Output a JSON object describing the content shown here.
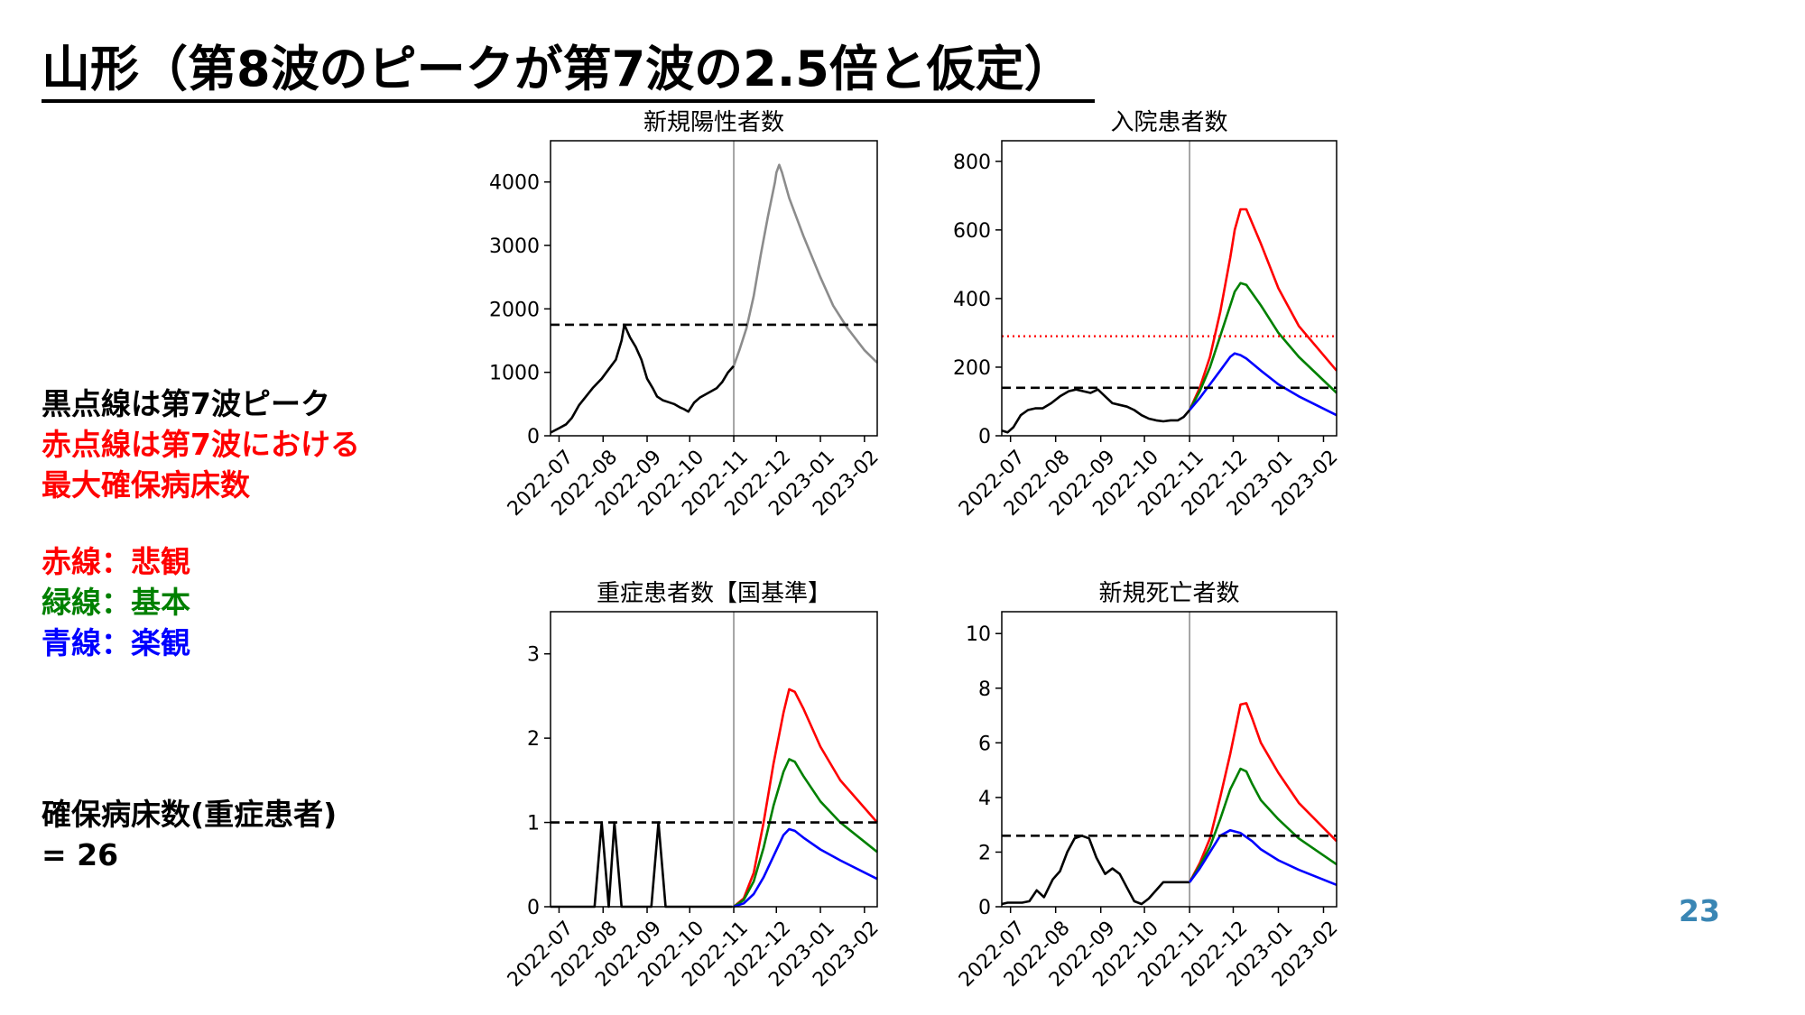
{
  "slide": {
    "title": "山形（第8波のピークが第7波の2.5倍と仮定）",
    "page_number": "23"
  },
  "notes": {
    "line1": "黒点線は第7波ピーク",
    "line2": "赤点線は第7波における",
    "line3": "最大確保病床数",
    "red_label": "赤線：悲観",
    "green_label": "緑線：基本",
    "blue_label": "青線：楽観",
    "bed_label": "確保病床数(重症患者)",
    "bed_value": "= 26"
  },
  "colors": {
    "pessimistic": "#ff0000",
    "base": "#008000",
    "optimistic": "#0000ff",
    "actual": "#000000",
    "projection": "#8c8c8c",
    "reference": "#000000",
    "page_number": "#3a86b4"
  },
  "chart_data": [
    {
      "id": "cases",
      "type": "line",
      "title": "新規陽性者数",
      "xlabel": "",
      "ylabel": "",
      "x_ticks": [
        "2022-07",
        "2022-08",
        "2022-09",
        "2022-10",
        "2022-11",
        "2022-12",
        "2023-01",
        "2023-02"
      ],
      "xlim": [
        "2022-06-25",
        "2023-02-10"
      ],
      "ylim": [
        0,
        4650
      ],
      "y_ticks": [
        0,
        1000,
        2000,
        3000,
        4000
      ],
      "divider_x": "2022-11-01",
      "hlines": [
        {
          "y": 1750,
          "style": "dashed",
          "color": "#000000"
        }
      ],
      "series": [
        {
          "style": "solid",
          "color": "#000000",
          "x": [
            "2022-06-25",
            "2022-07-01",
            "2022-07-06",
            "2022-07-10",
            "2022-07-15",
            "2022-07-20",
            "2022-07-25",
            "2022-07-31",
            "2022-08-05",
            "2022-08-10",
            "2022-08-14",
            "2022-08-16",
            "2022-08-20",
            "2022-08-24",
            "2022-08-28",
            "2022-09-01",
            "2022-09-05",
            "2022-09-08",
            "2022-09-12",
            "2022-09-16",
            "2022-09-20",
            "2022-09-24",
            "2022-09-27",
            "2022-09-30",
            "2022-10-04",
            "2022-10-08",
            "2022-10-12",
            "2022-10-16",
            "2022-10-20",
            "2022-10-24",
            "2022-10-28",
            "2022-11-01"
          ],
          "y": [
            50,
            120,
            180,
            280,
            480,
            620,
            760,
            900,
            1050,
            1200,
            1500,
            1750,
            1550,
            1400,
            1200,
            900,
            750,
            620,
            560,
            530,
            500,
            450,
            420,
            380,
            520,
            600,
            650,
            700,
            750,
            850,
            1000,
            1100
          ]
        },
        {
          "style": "solid",
          "color": "#8c8c8c",
          "x": [
            "2022-11-01",
            "2022-11-05",
            "2022-11-10",
            "2022-11-15",
            "2022-11-20",
            "2022-11-25",
            "2022-11-30",
            "2022-12-01",
            "2022-12-03",
            "2022-12-05",
            "2022-12-10",
            "2022-12-20",
            "2023-01-01",
            "2023-01-10",
            "2023-01-20",
            "2023-02-01",
            "2023-02-10"
          ],
          "y": [
            1100,
            1350,
            1700,
            2200,
            2850,
            3450,
            4000,
            4150,
            4270,
            4150,
            3750,
            3150,
            2500,
            2050,
            1700,
            1350,
            1150
          ]
        }
      ]
    },
    {
      "id": "hospitalized",
      "type": "line",
      "title": "入院患者数",
      "xlabel": "",
      "ylabel": "",
      "x_ticks": [
        "2022-07",
        "2022-08",
        "2022-09",
        "2022-10",
        "2022-11",
        "2022-12",
        "2023-01",
        "2023-02"
      ],
      "xlim": [
        "2022-06-25",
        "2023-02-10"
      ],
      "ylim": [
        0,
        860
      ],
      "y_ticks": [
        0,
        200,
        400,
        600,
        800
      ],
      "divider_x": "2022-11-01",
      "hlines": [
        {
          "y": 290,
          "style": "dotted",
          "color": "#ff0000"
        },
        {
          "y": 140,
          "style": "dashed",
          "color": "#000000"
        }
      ],
      "series": [
        {
          "style": "solid",
          "color": "#000000",
          "x": [
            "2022-06-25",
            "2022-06-29",
            "2022-07-03",
            "2022-07-08",
            "2022-07-13",
            "2022-07-18",
            "2022-07-23",
            "2022-07-29",
            "2022-08-04",
            "2022-08-10",
            "2022-08-15",
            "2022-08-20",
            "2022-08-25",
            "2022-08-30",
            "2022-09-04",
            "2022-09-09",
            "2022-09-14",
            "2022-09-19",
            "2022-09-24",
            "2022-09-29",
            "2022-10-04",
            "2022-10-09",
            "2022-10-14",
            "2022-10-19",
            "2022-10-24",
            "2022-10-28",
            "2022-11-01"
          ],
          "y": [
            15,
            10,
            25,
            60,
            75,
            80,
            80,
            95,
            115,
            130,
            135,
            130,
            125,
            135,
            115,
            95,
            90,
            85,
            75,
            60,
            50,
            45,
            42,
            45,
            45,
            55,
            75
          ]
        },
        {
          "style": "solid",
          "color": "#ff0000",
          "x": [
            "2022-11-01",
            "2022-11-08",
            "2022-11-15",
            "2022-11-22",
            "2022-11-29",
            "2022-12-02",
            "2022-12-06",
            "2022-12-10",
            "2022-12-20",
            "2023-01-01",
            "2023-01-15",
            "2023-02-10"
          ],
          "y": [
            75,
            140,
            230,
            360,
            520,
            600,
            660,
            660,
            560,
            430,
            320,
            190
          ]
        },
        {
          "style": "solid",
          "color": "#008000",
          "x": [
            "2022-11-01",
            "2022-11-08",
            "2022-11-15",
            "2022-11-22",
            "2022-11-29",
            "2022-12-02",
            "2022-12-06",
            "2022-12-10",
            "2022-12-20",
            "2023-01-01",
            "2023-01-15",
            "2023-02-10"
          ],
          "y": [
            75,
            130,
            200,
            290,
            380,
            420,
            445,
            440,
            380,
            300,
            230,
            125
          ]
        },
        {
          "style": "solid",
          "color": "#0000ff",
          "x": [
            "2022-11-01",
            "2022-11-08",
            "2022-11-15",
            "2022-11-22",
            "2022-11-29",
            "2022-12-02",
            "2022-12-06",
            "2022-12-10",
            "2022-12-20",
            "2023-01-01",
            "2023-01-15",
            "2023-02-10"
          ],
          "y": [
            75,
            110,
            150,
            190,
            230,
            240,
            235,
            225,
            190,
            150,
            115,
            60
          ]
        }
      ]
    },
    {
      "id": "severe",
      "type": "line",
      "title": "重症患者数【国基準】",
      "xlabel": "",
      "ylabel": "",
      "x_ticks": [
        "2022-07",
        "2022-08",
        "2022-09",
        "2022-10",
        "2022-11",
        "2022-12",
        "2023-01",
        "2023-02"
      ],
      "xlim": [
        "2022-06-25",
        "2023-02-10"
      ],
      "ylim": [
        0,
        3.5
      ],
      "y_ticks": [
        0,
        1,
        2,
        3
      ],
      "divider_x": "2022-11-01",
      "hlines": [
        {
          "y": 1,
          "style": "dashed",
          "color": "#000000"
        }
      ],
      "series": [
        {
          "style": "solid",
          "color": "#000000",
          "x": [
            "2022-06-25",
            "2022-07-26",
            "2022-07-31",
            "2022-08-05",
            "2022-08-09",
            "2022-08-14",
            "2022-08-18",
            "2022-09-04",
            "2022-09-09",
            "2022-09-14",
            "2022-10-31"
          ],
          "y": [
            0,
            0,
            1,
            0,
            1,
            0,
            0,
            0,
            1,
            0,
            0
          ]
        },
        {
          "style": "solid",
          "color": "#ff0000",
          "x": [
            "2022-11-01",
            "2022-11-08",
            "2022-11-15",
            "2022-11-22",
            "2022-11-29",
            "2022-12-06",
            "2022-12-10",
            "2022-12-14",
            "2022-12-20",
            "2023-01-01",
            "2023-01-15",
            "2023-02-10"
          ],
          "y": [
            0,
            0.1,
            0.4,
            1.0,
            1.7,
            2.3,
            2.58,
            2.55,
            2.35,
            1.9,
            1.5,
            1.0
          ]
        },
        {
          "style": "solid",
          "color": "#008000",
          "x": [
            "2022-11-01",
            "2022-11-08",
            "2022-11-15",
            "2022-11-22",
            "2022-11-29",
            "2022-12-06",
            "2022-12-10",
            "2022-12-14",
            "2022-12-20",
            "2023-01-01",
            "2023-01-15",
            "2023-02-10"
          ],
          "y": [
            0,
            0.08,
            0.3,
            0.7,
            1.2,
            1.6,
            1.75,
            1.72,
            1.55,
            1.25,
            1.0,
            0.65
          ]
        },
        {
          "style": "solid",
          "color": "#0000ff",
          "x": [
            "2022-11-01",
            "2022-11-08",
            "2022-11-15",
            "2022-11-22",
            "2022-11-29",
            "2022-12-06",
            "2022-12-10",
            "2022-12-14",
            "2022-12-20",
            "2023-01-01",
            "2023-01-15",
            "2023-02-10"
          ],
          "y": [
            0,
            0.04,
            0.15,
            0.35,
            0.6,
            0.85,
            0.92,
            0.9,
            0.82,
            0.68,
            0.55,
            0.33
          ]
        }
      ]
    },
    {
      "id": "deaths",
      "type": "line",
      "title": "新規死亡者数",
      "xlabel": "",
      "ylabel": "",
      "x_ticks": [
        "2022-07",
        "2022-08",
        "2022-09",
        "2022-10",
        "2022-11",
        "2022-12",
        "2023-01",
        "2023-02"
      ],
      "xlim": [
        "2022-06-25",
        "2023-02-10"
      ],
      "ylim": [
        0,
        10.8
      ],
      "y_ticks": [
        0,
        2,
        4,
        6,
        8,
        10
      ],
      "divider_x": "2022-11-01",
      "hlines": [
        {
          "y": 2.6,
          "style": "dashed",
          "color": "#000000"
        }
      ],
      "series": [
        {
          "style": "solid",
          "color": "#000000",
          "x": [
            "2022-06-25",
            "2022-06-29",
            "2022-07-04",
            "2022-07-09",
            "2022-07-14",
            "2022-07-19",
            "2022-07-24",
            "2022-07-30",
            "2022-08-04",
            "2022-08-09",
            "2022-08-14",
            "2022-08-19",
            "2022-08-24",
            "2022-08-29",
            "2022-09-04",
            "2022-09-09",
            "2022-09-14",
            "2022-09-19",
            "2022-09-24",
            "2022-09-29",
            "2022-10-04",
            "2022-10-09",
            "2022-10-14",
            "2022-10-19",
            "2022-10-24",
            "2022-10-28",
            "2022-11-01"
          ],
          "y": [
            0.1,
            0.15,
            0.15,
            0.15,
            0.2,
            0.6,
            0.35,
            1.0,
            1.3,
            2.0,
            2.5,
            2.6,
            2.5,
            1.8,
            1.2,
            1.4,
            1.2,
            0.7,
            0.2,
            0.1,
            0.3,
            0.6,
            0.9,
            0.9,
            0.9,
            0.9,
            0.9
          ]
        },
        {
          "style": "solid",
          "color": "#ff0000",
          "x": [
            "2022-11-01",
            "2022-11-08",
            "2022-11-15",
            "2022-11-22",
            "2022-11-29",
            "2022-12-06",
            "2022-12-10",
            "2022-12-14",
            "2022-12-20",
            "2023-01-01",
            "2023-01-15",
            "2023-02-10"
          ],
          "y": [
            0.9,
            1.6,
            2.5,
            4.0,
            5.6,
            7.4,
            7.45,
            6.9,
            6.0,
            4.9,
            3.8,
            2.4
          ]
        },
        {
          "style": "solid",
          "color": "#008000",
          "x": [
            "2022-11-01",
            "2022-11-08",
            "2022-11-15",
            "2022-11-22",
            "2022-11-29",
            "2022-12-06",
            "2022-12-10",
            "2022-12-14",
            "2022-12-20",
            "2023-01-01",
            "2023-01-15",
            "2023-02-10"
          ],
          "y": [
            0.9,
            1.5,
            2.2,
            3.2,
            4.3,
            5.05,
            4.95,
            4.5,
            3.9,
            3.2,
            2.5,
            1.55
          ]
        },
        {
          "style": "solid",
          "color": "#0000ff",
          "x": [
            "2022-11-01",
            "2022-11-08",
            "2022-11-15",
            "2022-11-22",
            "2022-11-29",
            "2022-12-06",
            "2022-12-10",
            "2022-12-14",
            "2022-12-20",
            "2023-01-01",
            "2023-01-15",
            "2023-02-10"
          ],
          "y": [
            0.9,
            1.4,
            2.0,
            2.6,
            2.8,
            2.7,
            2.55,
            2.4,
            2.1,
            1.7,
            1.35,
            0.8
          ]
        }
      ]
    }
  ]
}
